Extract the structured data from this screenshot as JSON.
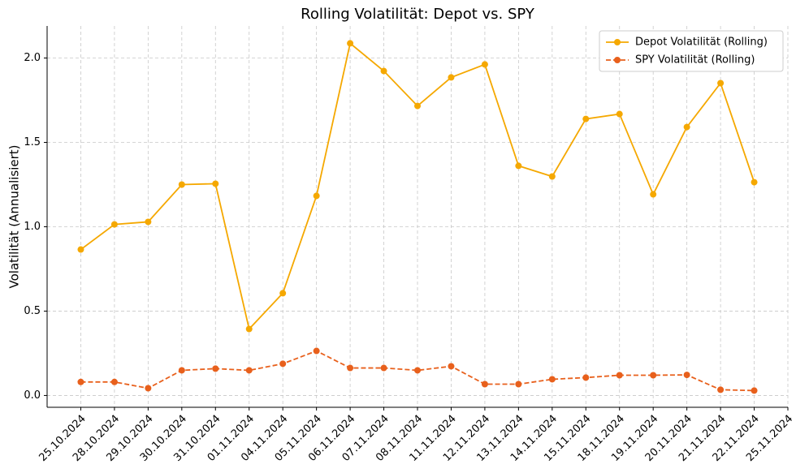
{
  "chart_data": {
    "type": "line",
    "title": "Rolling Volatilität: Depot vs. SPY",
    "y_label": "Volatilität (Annualisiert)",
    "categories": [
      "25.10.2024",
      "28.10.2024",
      "29.10.2024",
      "30.10.2024",
      "31.10.2024",
      "01.11.2024",
      "04.11.2024",
      "05.11.2024",
      "06.11.2024",
      "07.11.2024",
      "08.11.2024",
      "11.11.2024",
      "12.11.2024",
      "13.11.2024",
      "14.11.2024",
      "15.11.2024",
      "18.11.2024",
      "19.11.2024",
      "20.11.2024",
      "21.11.2024",
      "22.11.2024",
      "25.11.2024"
    ],
    "series": [
      {
        "name": "Depot Volatilität (Rolling)",
        "color": "#f5a800",
        "dash": false,
        "values": [
          0.865,
          1.014,
          1.029,
          1.25,
          1.255,
          0.394,
          0.606,
          1.183,
          2.087,
          1.923,
          1.716,
          1.885,
          1.962,
          1.361,
          1.298,
          1.639,
          1.668,
          1.192,
          1.591,
          1.851,
          1.264,
          null
        ]
      },
      {
        "name": "SPY Volatilität (Rolling)",
        "color": "#e8601c",
        "dash": true,
        "values": [
          0.08,
          0.08,
          0.043,
          0.149,
          0.159,
          0.149,
          0.188,
          0.264,
          0.163,
          0.163,
          0.149,
          0.173,
          0.067,
          0.067,
          0.096,
          0.106,
          0.12,
          0.12,
          0.122,
          0.034,
          0.029,
          null
        ]
      }
    ],
    "ylim": [
      -0.07,
      2.19
    ],
    "yticks": [
      {
        "value": 0,
        "label": "0.0"
      },
      0.5,
      {
        "value": 1,
        "label": "1.0"
      },
      1.5,
      {
        "value": 2,
        "label": "2.0"
      }
    ],
    "grid": true,
    "legend": "upper right"
  }
}
